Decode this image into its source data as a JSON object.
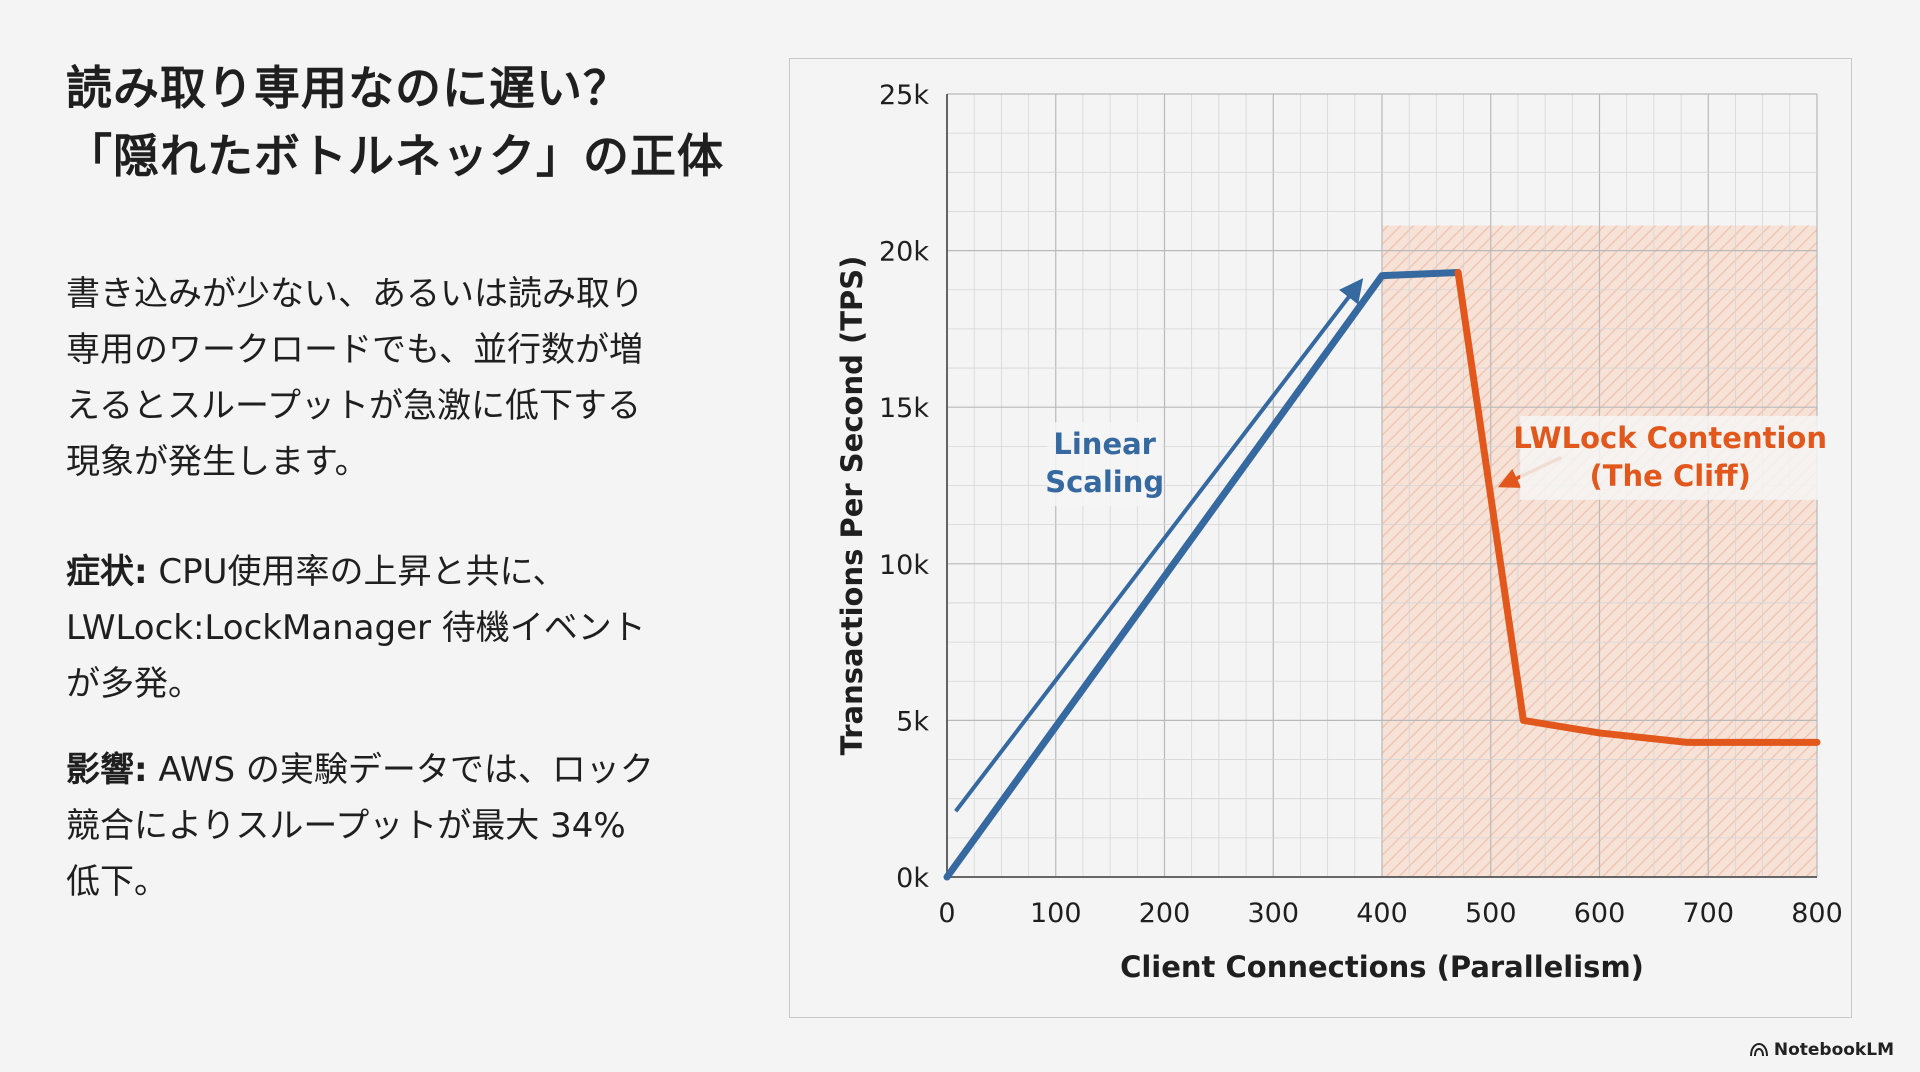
{
  "slide": {
    "title_line1": "読み取り専用なのに遅い？",
    "title_line2": "「隠れたボトルネック」の正体",
    "intro_lines": [
      "書き込みが少ない、あるいは読み取り",
      "専用のワークロードでも、並行数が増",
      "えるとスループットが急激に低下する",
      "現象が発生します。"
    ],
    "symptom_label": "症状:",
    "symptom_lines": [
      "CPU使用率の上昇と共に、",
      "LWLock:LockManager 待機イベント",
      "が多発。"
    ],
    "impact_label": "影響:",
    "impact_lines": [
      "AWS の実験データでは、ロック",
      "競合によりスループットが最大 34%",
      "低下。"
    ]
  },
  "brand": {
    "name": "NotebookLM"
  },
  "colors": {
    "blue": "#3569a0",
    "orange": "#e2571b",
    "grid": "#c7c7c7",
    "zone_fill": "#f7e2d8"
  },
  "chart_data": {
    "type": "line",
    "title": "",
    "xlabel": "Client Connections (Parallelism)",
    "ylabel": "Transactions Per Second (TPS)",
    "xlim": [
      0,
      800
    ],
    "ylim": [
      0,
      25000
    ],
    "x_ticks": [
      0,
      100,
      200,
      300,
      400,
      500,
      600,
      700,
      800
    ],
    "x_tick_labels": [
      "0",
      "100",
      "200",
      "300",
      "400",
      "500",
      "600",
      "700",
      "800"
    ],
    "y_ticks": [
      0,
      5000,
      10000,
      15000,
      20000,
      25000
    ],
    "y_tick_labels": [
      "0k",
      "5k",
      "10k",
      "15k",
      "20k",
      "25k"
    ],
    "grid": true,
    "series": [
      {
        "name": "Linear Scaling",
        "color": "#3569a0",
        "points": [
          [
            0,
            0
          ],
          [
            400,
            19200
          ],
          [
            470,
            19300
          ]
        ]
      },
      {
        "name": "LWLock Contention (The Cliff)",
        "color": "#e2571b",
        "points": [
          [
            470,
            19300
          ],
          [
            530,
            5000
          ],
          [
            600,
            4600
          ],
          [
            680,
            4300
          ],
          [
            800,
            4300
          ]
        ]
      }
    ],
    "shaded_region": {
      "x_from": 400,
      "x_to": 800,
      "y_from": 0,
      "y_to": 20800
    },
    "annotations": [
      {
        "lines": [
          "Linear",
          "Scaling"
        ],
        "at": [
          145,
          13500
        ],
        "color": "#3569a0",
        "arrow_from": [
          8,
          2100
        ],
        "arrow_to": [
          380,
          19000
        ]
      },
      {
        "lines": [
          "LWLock Contention",
          "(The Cliff)"
        ],
        "at": [
          665,
          13700
        ],
        "color": "#e2571b",
        "arrow_from": [
          565,
          13400
        ],
        "arrow_to": [
          510,
          12500
        ]
      }
    ]
  }
}
